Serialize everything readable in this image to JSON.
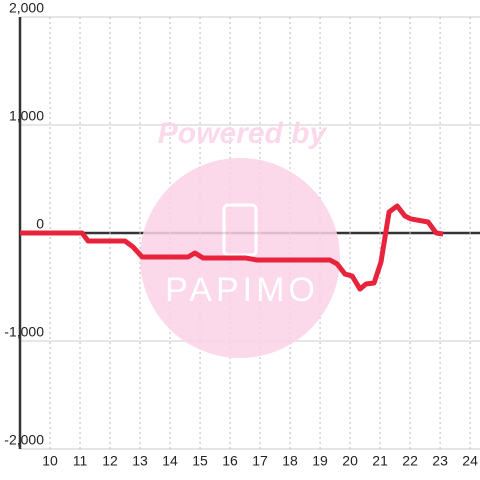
{
  "chart_data": {
    "type": "line",
    "watermark": [
      "Powered by",
      "PAPIMO"
    ],
    "x": [
      9,
      11.07,
      11.27,
      12.5,
      12.77,
      13.07,
      14.6,
      14.83,
      15.1,
      16.5,
      16.9,
      19.33,
      19.57,
      19.83,
      20.07,
      20.33,
      20.53,
      20.8,
      21.03,
      21.3,
      21.57,
      21.83,
      22.03,
      22.6,
      22.87,
      23.1
    ],
    "series": [
      {
        "color": "#e8243c",
        "values": [
          0,
          0,
          -74,
          -74,
          -130,
          -222,
          -222,
          -185,
          -231,
          -231,
          -250,
          -250,
          -287,
          -380,
          -398,
          -519,
          -472,
          -463,
          -269,
          194,
          250,
          157,
          130,
          102,
          0,
          -9
        ]
      }
    ],
    "xlim": [
      9,
      24.33
    ],
    "xticks": [
      10,
      11,
      12,
      13,
      14,
      15,
      16,
      17,
      18,
      19,
      20,
      21,
      22,
      23,
      24
    ],
    "ylim": [
      -2000,
      2000
    ],
    "yticks": [
      {
        "value": 2000,
        "label": "2,000"
      },
      {
        "value": 1000,
        "label": "1,000"
      },
      0,
      {
        "value": -1000,
        "label": "-1,000"
      },
      {
        "value": -2000,
        "label": "-2,000"
      }
    ],
    "grid": true
  }
}
